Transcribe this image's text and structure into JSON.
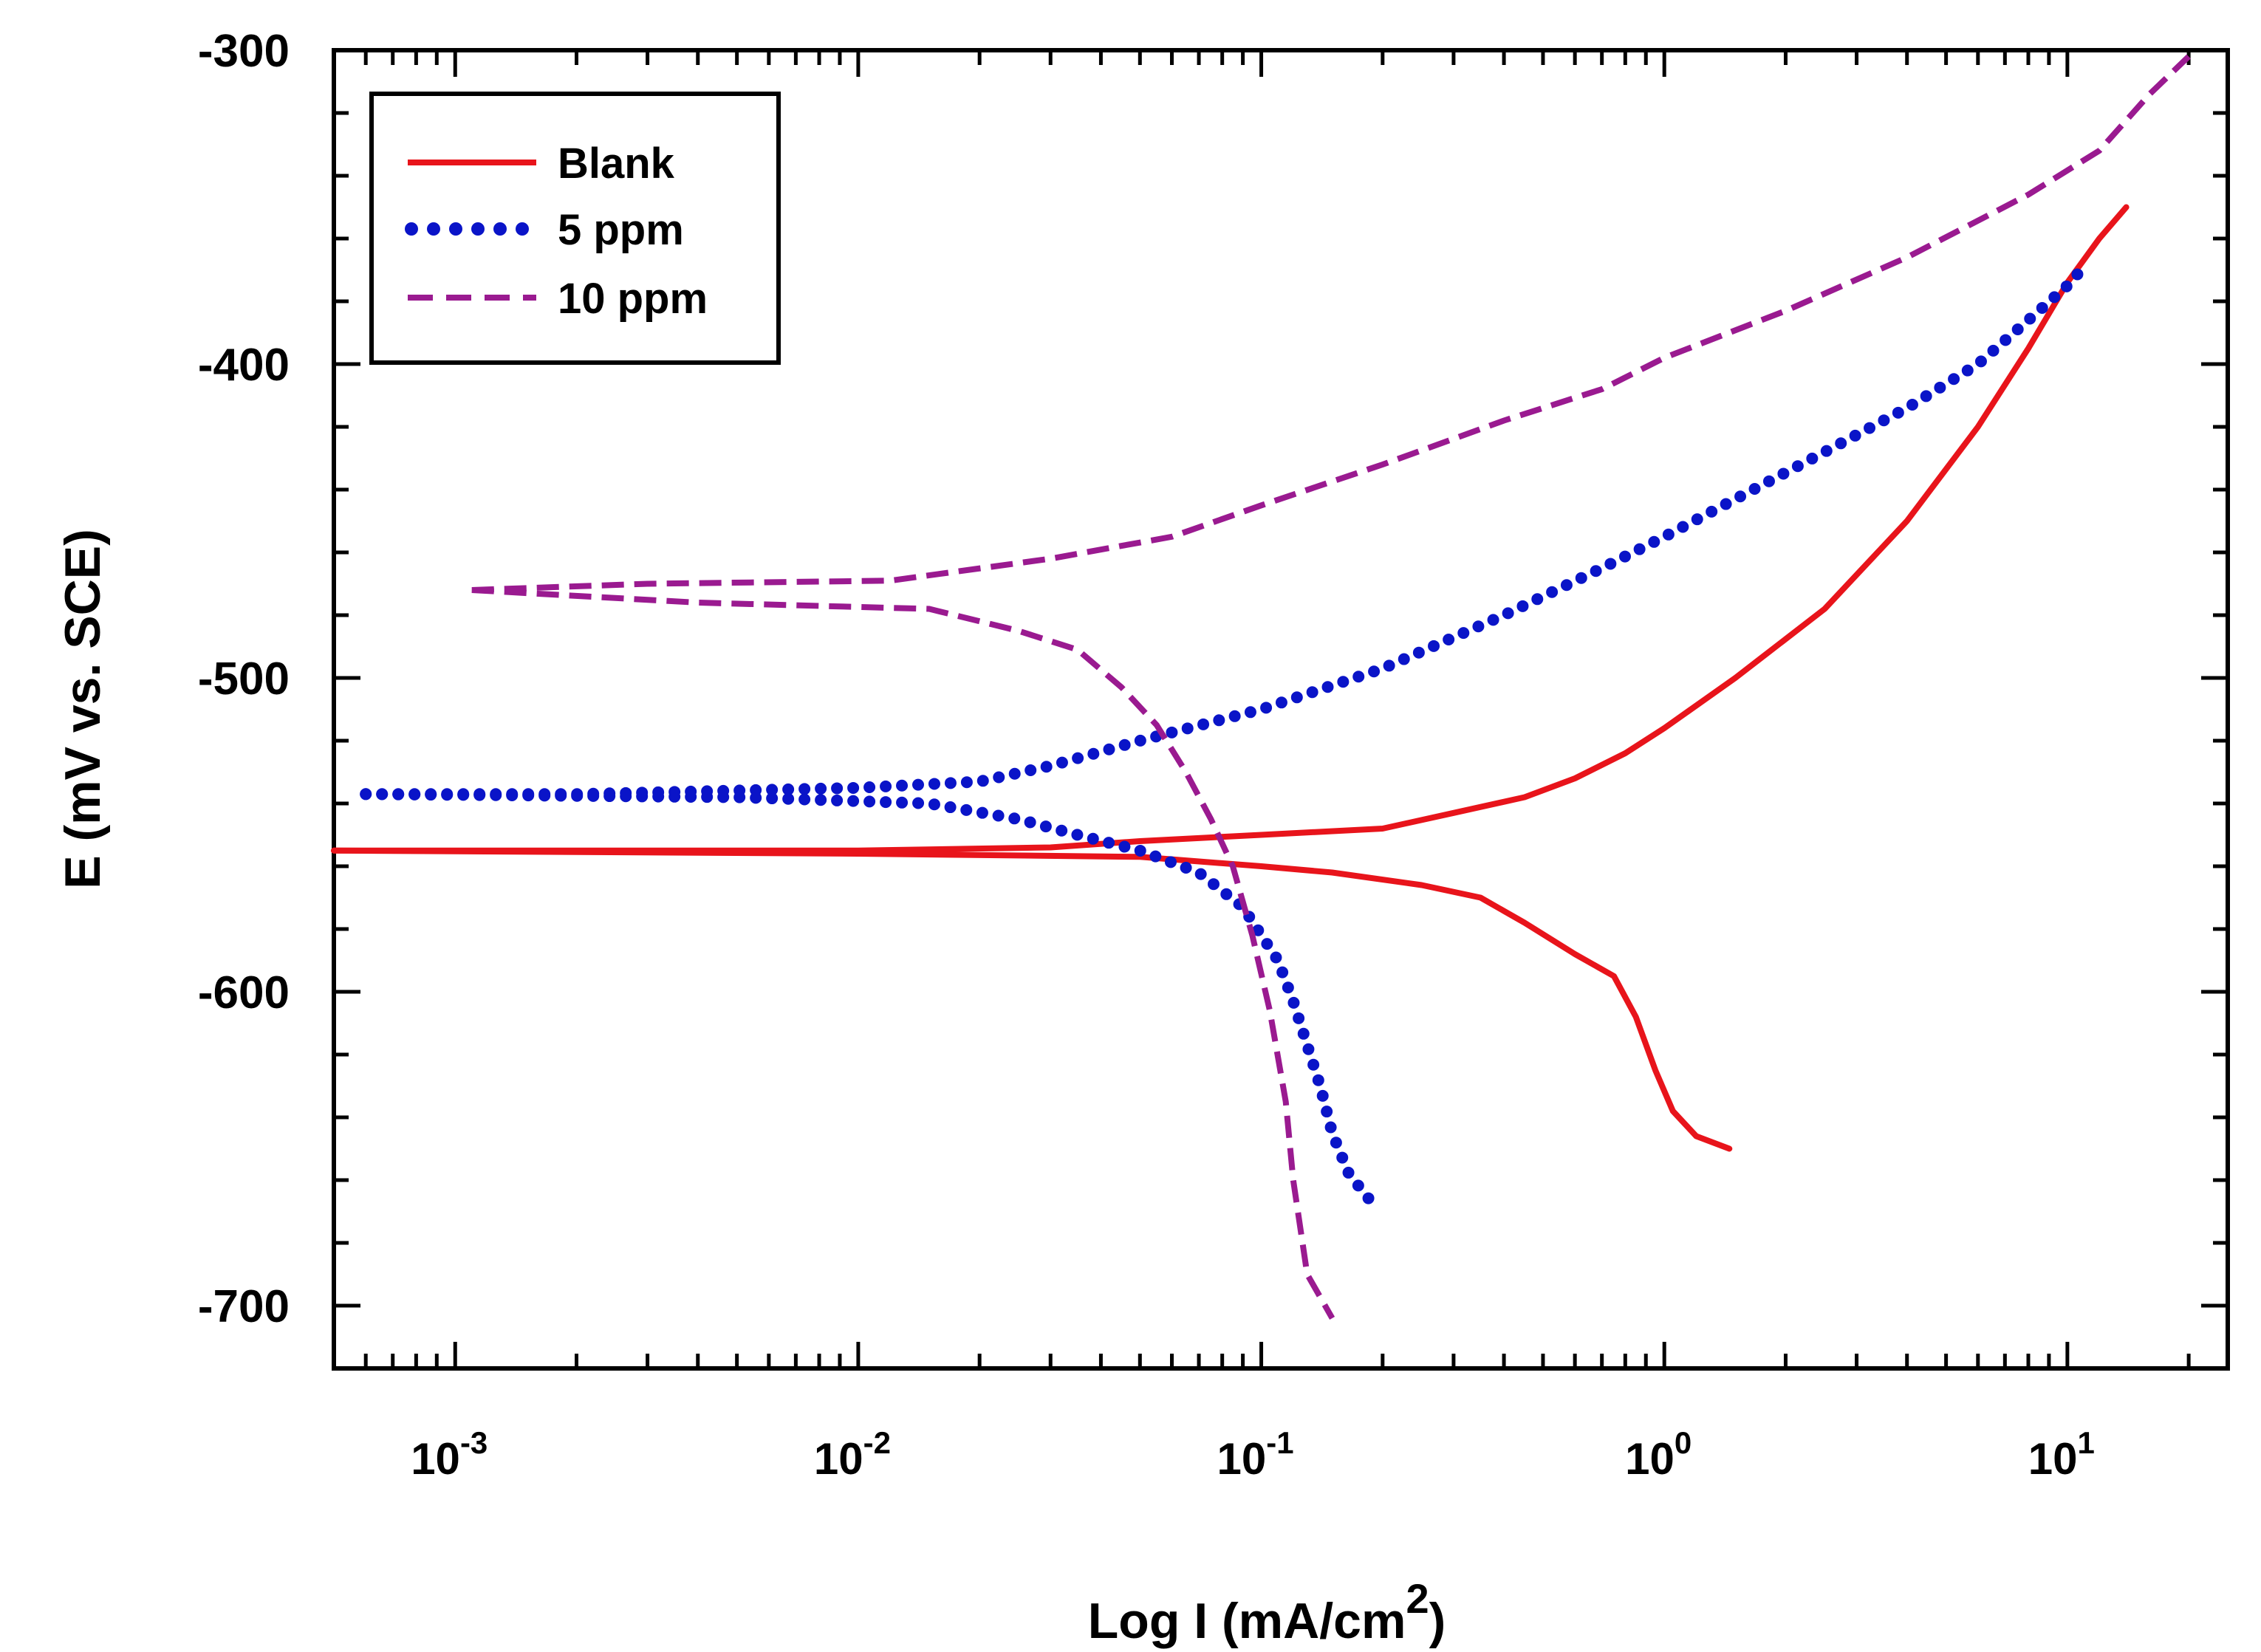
{
  "chart_data": {
    "type": "line",
    "title": "",
    "xlabel": "Log I (mA/cm",
    "xlabel_sup": "2",
    "xlabel_close": ")",
    "ylabel": "E (mV vs. SCE)",
    "xscale": "log",
    "xlim": [
      0.0005,
      25
    ],
    "ylim": [
      -720,
      -300
    ],
    "grid": false,
    "legend_position": "top-left",
    "y_ticks": [
      {
        "value": -300,
        "label": "-300"
      },
      {
        "value": -400,
        "label": "-400"
      },
      {
        "value": -500,
        "label": "-500"
      },
      {
        "value": -600,
        "label": "-600"
      },
      {
        "value": -700,
        "label": "-700"
      }
    ],
    "x_ticks": [
      {
        "value": 0.001,
        "base": "10",
        "exp": "-3"
      },
      {
        "value": 0.01,
        "base": "10",
        "exp": "-2"
      },
      {
        "value": 0.1,
        "base": "10",
        "exp": "-1"
      },
      {
        "value": 1,
        "base": "10",
        "exp": "0"
      },
      {
        "value": 10,
        "base": "10",
        "exp": "1"
      }
    ],
    "series": [
      {
        "name": "Blank",
        "color": "#e8141b",
        "style": "solid",
        "anodic": [
          [
            0.0005,
            -555
          ],
          [
            0.002,
            -555
          ],
          [
            0.01,
            -555
          ],
          [
            0.03,
            -554
          ],
          [
            0.05,
            -552
          ],
          [
            0.1,
            -550
          ],
          [
            0.2,
            -548
          ],
          [
            0.3,
            -543
          ],
          [
            0.45,
            -538
          ],
          [
            0.6,
            -532
          ],
          [
            0.8,
            -524
          ],
          [
            1.0,
            -516
          ],
          [
            1.5,
            -500
          ],
          [
            2.5,
            -478
          ],
          [
            4,
            -450
          ],
          [
            6,
            -420
          ],
          [
            8,
            -395
          ],
          [
            10,
            -374
          ],
          [
            12,
            -360
          ],
          [
            14,
            -350
          ]
        ],
        "cathodic": [
          [
            0.0005,
            -555
          ],
          [
            0.01,
            -556
          ],
          [
            0.05,
            -557
          ],
          [
            0.1,
            -560
          ],
          [
            0.15,
            -562
          ],
          [
            0.25,
            -566
          ],
          [
            0.35,
            -570
          ],
          [
            0.45,
            -578
          ],
          [
            0.6,
            -588
          ],
          [
            0.75,
            -595
          ],
          [
            0.85,
            -608
          ],
          [
            0.95,
            -625
          ],
          [
            1.05,
            -638
          ],
          [
            1.2,
            -646
          ],
          [
            1.45,
            -650
          ]
        ]
      },
      {
        "name": "5 ppm",
        "color": "#0a14c8",
        "style": "dotted",
        "anodic": [
          [
            0.0006,
            -537
          ],
          [
            0.002,
            -537
          ],
          [
            0.01,
            -535
          ],
          [
            0.02,
            -533
          ],
          [
            0.03,
            -528
          ],
          [
            0.05,
            -520
          ],
          [
            0.1,
            -510
          ],
          [
            0.2,
            -497
          ],
          [
            0.4,
            -480
          ],
          [
            0.7,
            -465
          ],
          [
            1.0,
            -455
          ],
          [
            1.5,
            -443
          ],
          [
            2.5,
            -428
          ],
          [
            4,
            -414
          ],
          [
            6,
            -400
          ],
          [
            8,
            -386
          ],
          [
            10,
            -375
          ],
          [
            11,
            -369
          ]
        ],
        "cathodic": [
          [
            0.0006,
            -537
          ],
          [
            0.005,
            -538
          ],
          [
            0.015,
            -540
          ],
          [
            0.025,
            -545
          ],
          [
            0.035,
            -550
          ],
          [
            0.05,
            -555
          ],
          [
            0.07,
            -562
          ],
          [
            0.09,
            -573
          ],
          [
            0.11,
            -590
          ],
          [
            0.12,
            -603
          ],
          [
            0.13,
            -617
          ],
          [
            0.14,
            -630
          ],
          [
            0.15,
            -645
          ],
          [
            0.165,
            -658
          ],
          [
            0.185,
            -666
          ]
        ]
      },
      {
        "name": "10 ppm",
        "color": "#9a1a90",
        "style": "dashed",
        "anodic": [
          [
            0.0011,
            -472
          ],
          [
            0.003,
            -470
          ],
          [
            0.012,
            -469
          ],
          [
            0.03,
            -462
          ],
          [
            0.06,
            -455
          ],
          [
            0.1,
            -445
          ],
          [
            0.2,
            -432
          ],
          [
            0.4,
            -418
          ],
          [
            0.7,
            -408
          ],
          [
            1.0,
            -398
          ],
          [
            2,
            -383
          ],
          [
            4,
            -366
          ],
          [
            8,
            -346
          ],
          [
            12,
            -332
          ],
          [
            16,
            -314
          ],
          [
            20,
            -302
          ]
        ],
        "cathodic": [
          [
            0.0011,
            -472
          ],
          [
            0.004,
            -476
          ],
          [
            0.015,
            -478
          ],
          [
            0.025,
            -485
          ],
          [
            0.035,
            -491
          ],
          [
            0.045,
            -503
          ],
          [
            0.055,
            -515
          ],
          [
            0.065,
            -530
          ],
          [
            0.075,
            -545
          ],
          [
            0.085,
            -560
          ],
          [
            0.095,
            -582
          ],
          [
            0.105,
            -606
          ],
          [
            0.115,
            -635
          ],
          [
            0.12,
            -660
          ],
          [
            0.13,
            -690
          ],
          [
            0.15,
            -704
          ]
        ]
      }
    ]
  }
}
